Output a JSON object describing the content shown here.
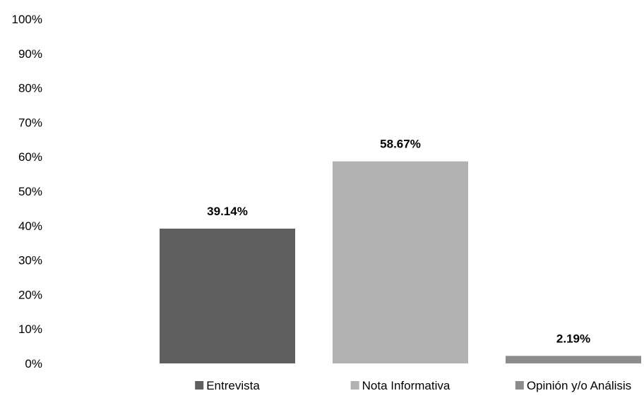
{
  "chart_data": {
    "type": "bar",
    "categories": [
      "Entrevista",
      "Nota Informativa",
      "Opinión y/o Análisis"
    ],
    "values": [
      39.14,
      58.67,
      2.19
    ],
    "data_labels": [
      "39.14%",
      "58.67%",
      "2.19%"
    ],
    "ylim": [
      0,
      100
    ],
    "y_ticks": [
      "0%",
      "10%",
      "20%",
      "30%",
      "40%",
      "50%",
      "60%",
      "70%",
      "80%",
      "90%",
      "100%"
    ],
    "grid": false,
    "legend": {
      "position": "bottom",
      "entries": [
        "Entrevista",
        "Nota Informativa",
        "Opinión y/o Análisis"
      ]
    },
    "colors": [
      "#5f5f5f",
      "#b2b2b2",
      "#8c8c8c"
    ]
  }
}
